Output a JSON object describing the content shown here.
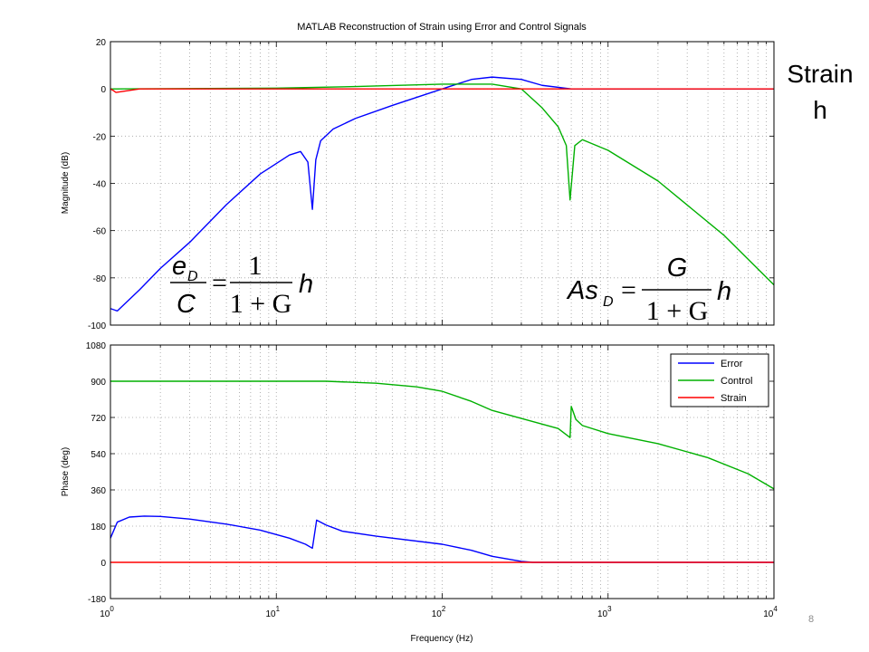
{
  "slide": {
    "side_label_line1": "Strain",
    "side_label_line2": "h",
    "page_number": "8"
  },
  "equations": {
    "left": {
      "numerator": "e",
      "numerator_sub": "D",
      "denominator": "C",
      "rhs_numerator": "1",
      "rhs_denominator": "1 + G",
      "variable": "h",
      "equals": "="
    },
    "right": {
      "lhs": "As",
      "lhs_sub": "D",
      "rhs_numerator": "G",
      "rhs_denominator": "1 + G",
      "variable": "h",
      "equals": "="
    }
  },
  "colors": {
    "error": "#0000ff",
    "control": "#00b000",
    "strain": "#ff0000",
    "grid": "#a0a0a0"
  },
  "chart_data": [
    {
      "type": "line",
      "title": "MATLAB Reconstruction of Strain using Error and Control Signals",
      "ylabel": "Magnitude (dB)",
      "xscale": "log",
      "xlim": [
        1,
        10000
      ],
      "ylim": [
        -100,
        20
      ],
      "yticks": [
        "20",
        "0",
        "-20",
        "-40",
        "-60",
        "-80",
        "-100"
      ],
      "grid": true,
      "series": [
        {
          "name": "Error",
          "color": "#0000ff",
          "x": [
            1,
            1.1,
            1.5,
            2,
            3,
            5,
            8,
            12,
            14,
            15.5,
            16.5,
            17.3,
            18.5,
            22,
            30,
            50,
            100,
            150,
            200,
            300,
            400,
            600,
            1000,
            2000,
            5000,
            10000
          ],
          "y": [
            -93,
            -94,
            -85,
            -76,
            -65,
            -49,
            -36,
            -28,
            -26.5,
            -31,
            -51,
            -30,
            -22,
            -17,
            -12.5,
            -7,
            0,
            4,
            5,
            4,
            1.5,
            0,
            0,
            0,
            0,
            0
          ]
        },
        {
          "name": "Control",
          "color": "#00b000",
          "x": [
            1,
            10,
            30,
            100,
            200,
            300,
            400,
            500,
            560,
            590,
            630,
            700,
            1000,
            2000,
            5000,
            10000
          ],
          "y": [
            0,
            0.3,
            1,
            2,
            2,
            0,
            -8,
            -16,
            -24,
            -47,
            -24,
            -21.5,
            -26,
            -39,
            -62,
            -83
          ]
        },
        {
          "name": "Strain",
          "color": "#ff0000",
          "x": [
            1,
            1.03,
            1.08,
            1.2,
            1.5,
            10000
          ],
          "y": [
            0,
            -0.5,
            -1.5,
            -1,
            0,
            0
          ]
        }
      ]
    },
    {
      "type": "line",
      "xlabel": "Frequency (Hz)",
      "ylabel": "Phase (deg)",
      "xscale": "log",
      "xlim": [
        1,
        10000
      ],
      "ylim": [
        -180,
        1080
      ],
      "yticks": [
        "1080",
        "900",
        "720",
        "540",
        "360",
        "180",
        "0",
        "-180"
      ],
      "xticks": [
        {
          "base": "10",
          "exp": "0"
        },
        {
          "base": "10",
          "exp": "1"
        },
        {
          "base": "10",
          "exp": "2"
        },
        {
          "base": "10",
          "exp": "3"
        },
        {
          "base": "10",
          "exp": "4"
        }
      ],
      "grid": true,
      "legend": "top-right",
      "series": [
        {
          "name": "Error",
          "color": "#0000ff",
          "x": [
            1,
            1.1,
            1.3,
            1.6,
            2,
            3,
            5,
            8,
            12,
            15,
            16.5,
            17.5,
            20,
            25,
            40,
            100,
            150,
            200,
            300,
            350,
            10000
          ],
          "y": [
            120,
            200,
            225,
            230,
            228,
            215,
            190,
            160,
            120,
            90,
            70,
            210,
            185,
            155,
            130,
            90,
            60,
            30,
            5,
            0,
            0
          ]
        },
        {
          "name": "Control",
          "color": "#00b000",
          "x": [
            1,
            10,
            20,
            40,
            70,
            100,
            150,
            200,
            300,
            500,
            590,
            600,
            640,
            700,
            1000,
            2000,
            4000,
            7000,
            10000
          ],
          "y": [
            900,
            900,
            900,
            890,
            872,
            850,
            800,
            755,
            715,
            665,
            620,
            775,
            710,
            680,
            640,
            590,
            520,
            440,
            365
          ]
        },
        {
          "name": "Strain",
          "color": "#ff0000",
          "x": [
            1,
            10000
          ],
          "y": [
            0,
            0
          ]
        }
      ]
    }
  ]
}
